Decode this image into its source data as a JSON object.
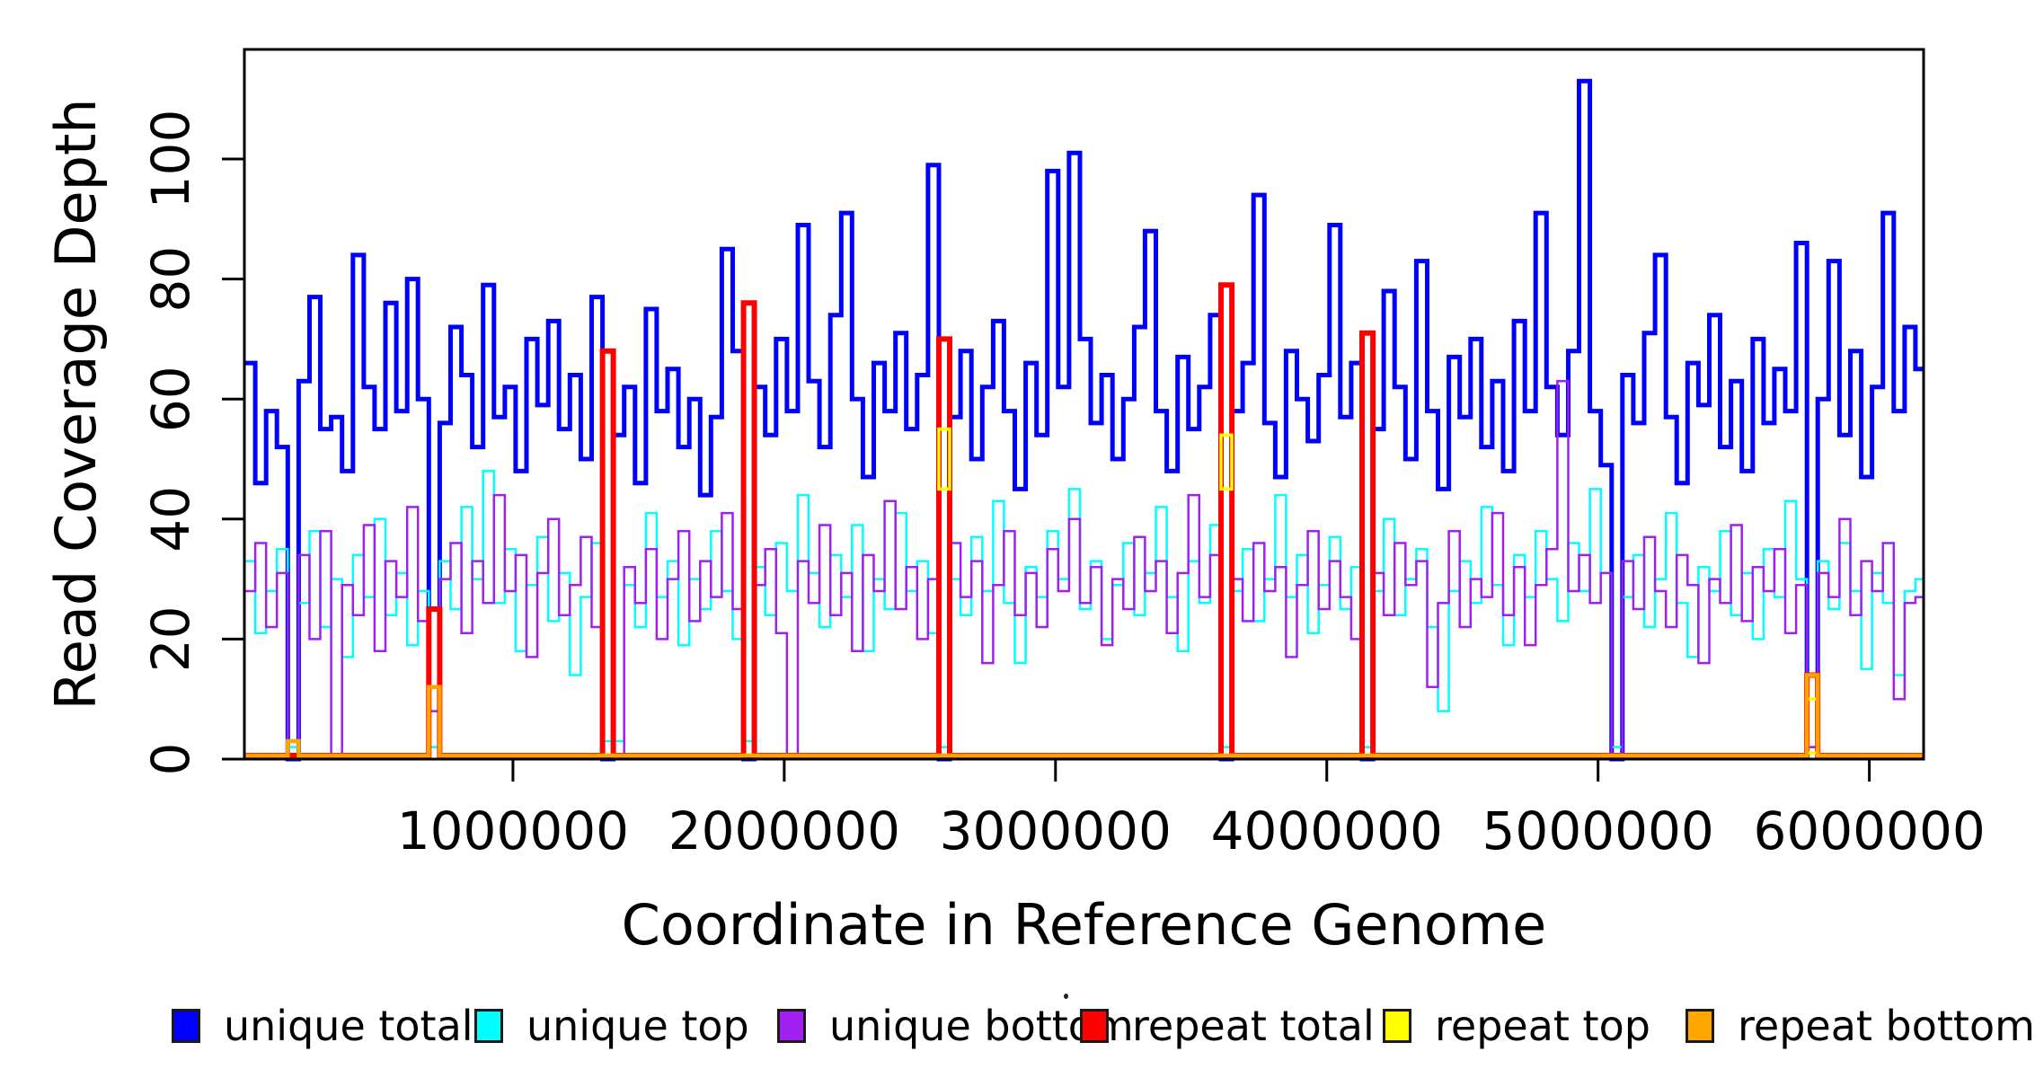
{
  "figure": {
    "background": "#ffffff"
  },
  "axes": {
    "xlabel": "Coordinate in Reference Genome",
    "ylabel": "Read Coverage Depth",
    "x_ticks": [
      {
        "mb": 1.0,
        "label": "1000000"
      },
      {
        "mb": 2.0,
        "label": "2000000"
      },
      {
        "mb": 3.0,
        "label": "3000000"
      },
      {
        "mb": 4.0,
        "label": "4000000"
      },
      {
        "mb": 5.0,
        "label": "5000000"
      },
      {
        "mb": 6.0,
        "label": "6000000"
      }
    ],
    "y_ticks": [
      0,
      20,
      40,
      60,
      80,
      100
    ],
    "x_range_mb": [
      0.01,
      6.2
    ],
    "y_range": [
      0,
      118
    ],
    "box_color": "#000000"
  },
  "legend": [
    {
      "label": "unique total",
      "color": "#0000FF"
    },
    {
      "label": "unique top",
      "color": "#00FFFF"
    },
    {
      "label": "unique bottom",
      "color": "#A020F0"
    },
    {
      "label": "repeat total",
      "color": "#FF0000"
    },
    {
      "label": "repeat top",
      "color": "#FFFF00"
    },
    {
      "label": "repeat bottom",
      "color": "#FFA500"
    }
  ],
  "chart_data": {
    "type": "line",
    "step_style": "s",
    "title": "",
    "xlabel": "Coordinate in Reference Genome",
    "ylabel": "Read Coverage Depth",
    "x_unit": "bp",
    "x_start_mb": 0.01,
    "dx_mb": 0.04,
    "xlim_mb": [
      0.01,
      6.2
    ],
    "ylim": [
      0,
      118
    ],
    "grid": false,
    "legend_position": "bottom",
    "series": [
      {
        "name": "unique_total",
        "label": "unique total",
        "color": "#0000FF",
        "line_width": 5,
        "values": [
          66,
          46,
          58,
          52,
          0,
          63,
          77,
          55,
          57,
          48,
          84,
          62,
          55,
          76,
          58,
          80,
          60,
          25,
          56,
          72,
          64,
          52,
          79,
          57,
          62,
          48,
          70,
          59,
          73,
          55,
          64,
          50,
          77,
          0,
          54,
          62,
          46,
          75,
          58,
          65,
          52,
          60,
          44,
          57,
          85,
          68,
          0,
          62,
          54,
          70,
          58,
          89,
          63,
          52,
          74,
          91,
          60,
          47,
          66,
          58,
          71,
          55,
          64,
          99,
          0,
          57,
          68,
          50,
          62,
          73,
          58,
          45,
          66,
          54,
          98,
          62,
          101,
          70,
          56,
          64,
          50,
          60,
          72,
          88,
          58,
          48,
          67,
          55,
          62,
          74,
          0,
          58,
          66,
          94,
          56,
          47,
          68,
          60,
          53,
          64,
          89,
          57,
          66,
          0,
          55,
          78,
          62,
          50,
          83,
          58,
          45,
          67,
          57,
          70,
          52,
          63,
          48,
          73,
          58,
          91,
          62,
          54,
          68,
          113,
          58,
          49,
          0,
          64,
          56,
          71,
          84,
          57,
          46,
          66,
          59,
          74,
          52,
          63,
          48,
          70,
          56,
          65,
          58,
          86,
          14,
          60,
          83,
          54,
          68,
          47,
          62,
          91,
          58,
          72,
          65
        ]
      },
      {
        "name": "unique_top",
        "label": "unique top",
        "color": "#00FFFF",
        "line_width": 2.5,
        "values": [
          33,
          21,
          28,
          35,
          2,
          26,
          38,
          22,
          30,
          17,
          34,
          27,
          40,
          24,
          31,
          19,
          28,
          2,
          33,
          25,
          42,
          30,
          48,
          26,
          35,
          18,
          29,
          37,
          23,
          31,
          14,
          27,
          36,
          3,
          3,
          29,
          22,
          41,
          27,
          33,
          19,
          30,
          25,
          38,
          28,
          20,
          3,
          32,
          24,
          36,
          28,
          44,
          31,
          22,
          34,
          27,
          39,
          18,
          30,
          25,
          41,
          28,
          33,
          21,
          2,
          30,
          24,
          37,
          28,
          43,
          26,
          16,
          32,
          27,
          38,
          30,
          45,
          25,
          33,
          20,
          29,
          36,
          24,
          31,
          42,
          27,
          18,
          33,
          26,
          39,
          2,
          28,
          35,
          23,
          30,
          44,
          27,
          34,
          21,
          29,
          37,
          25,
          32,
          2,
          28,
          40,
          24,
          30,
          35,
          22,
          8,
          28,
          33,
          26,
          42,
          29,
          19,
          34,
          27,
          38,
          30,
          23,
          36,
          28,
          45,
          31,
          2,
          27,
          34,
          22,
          30,
          41,
          26,
          17,
          32,
          28,
          38,
          24,
          31,
          20,
          35,
          27,
          43,
          30,
          2,
          33,
          25,
          36,
          28,
          15,
          31,
          26,
          14,
          28,
          30
        ]
      },
      {
        "name": "unique_bottom",
        "label": "unique bottom",
        "color": "#A020F0",
        "line_width": 2.5,
        "values": [
          28,
          36,
          22,
          31,
          0,
          34,
          20,
          38,
          0,
          29,
          24,
          39,
          18,
          33,
          27,
          42,
          23,
          8,
          30,
          36,
          21,
          33,
          26,
          44,
          28,
          34,
          17,
          31,
          40,
          24,
          29,
          37,
          22,
          0,
          0,
          32,
          26,
          35,
          20,
          30,
          38,
          23,
          33,
          27,
          41,
          25,
          0,
          29,
          35,
          21,
          0,
          33,
          26,
          39,
          24,
          31,
          18,
          34,
          28,
          43,
          25,
          32,
          20,
          30,
          0,
          36,
          27,
          33,
          16,
          29,
          38,
          24,
          31,
          22,
          35,
          28,
          40,
          26,
          32,
          19,
          30,
          25,
          37,
          28,
          33,
          21,
          31,
          44,
          27,
          34,
          0,
          30,
          23,
          36,
          28,
          32,
          17,
          29,
          38,
          25,
          33,
          27,
          20,
          0,
          31,
          24,
          36,
          29,
          33,
          12,
          26,
          38,
          22,
          30,
          27,
          41,
          24,
          32,
          19,
          29,
          35,
          63,
          28,
          34,
          26,
          31,
          0,
          33,
          25,
          37,
          28,
          22,
          34,
          29,
          16,
          30,
          26,
          39,
          23,
          32,
          28,
          35,
          21,
          29,
          2,
          31,
          27,
          40,
          24,
          33,
          28,
          36,
          10,
          26,
          27
        ]
      },
      {
        "name": "repeat_total",
        "label": "repeat total",
        "color": "#FF0000",
        "line_width": 6,
        "baseline": 0.6,
        "spikes": [
          {
            "i": 17,
            "v": 25
          },
          {
            "i": 33,
            "v": 68
          },
          {
            "i": 46,
            "v": 76
          },
          {
            "i": 64,
            "v": 70
          },
          {
            "i": 90,
            "v": 79
          },
          {
            "i": 103,
            "v": 71
          },
          {
            "i": 144,
            "v": 14
          }
        ]
      },
      {
        "name": "repeat_top",
        "label": "repeat top",
        "color": "#FFFF00",
        "line_width": 3.5,
        "segments": [
          {
            "i": 64,
            "y0": 45,
            "y1": 55
          },
          {
            "i": 90,
            "y0": 45,
            "y1": 54
          },
          {
            "i": 144,
            "y0": 1,
            "y1": 10
          }
        ]
      },
      {
        "name": "repeat_bottom",
        "label": "repeat bottom",
        "color": "#FFA500",
        "line_width": 4.5,
        "baseline": 0.6,
        "spikes": [
          {
            "i": 4,
            "v": 3
          },
          {
            "i": 17,
            "v": 12
          },
          {
            "i": 144,
            "v": 14
          }
        ]
      }
    ]
  }
}
